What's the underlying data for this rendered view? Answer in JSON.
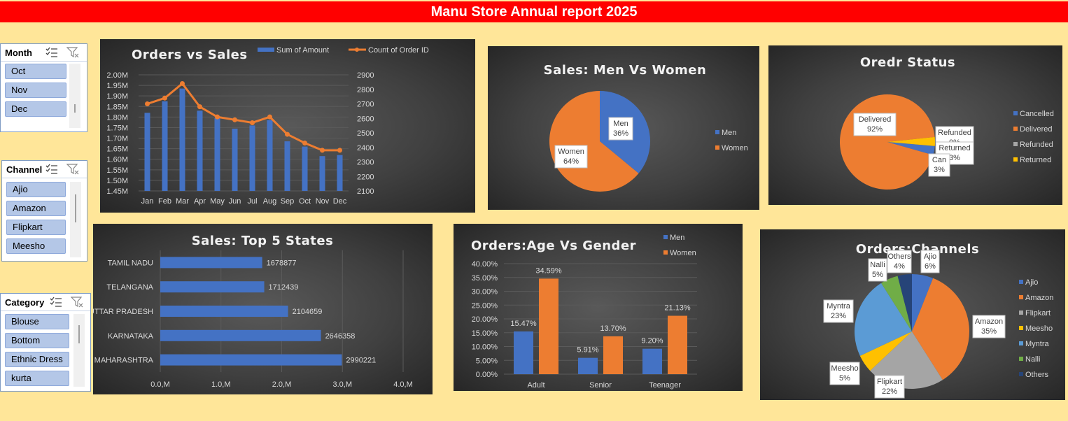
{
  "report_title": "Manu Store Annual report 2025",
  "colors": {
    "title_bar": "#ff0000",
    "background": "#ffe699",
    "blue": "#4472c4",
    "orange": "#ed7d31",
    "gray": "#a5a5a5",
    "yellow": "#ffc000",
    "lightblue": "#5b9bd5",
    "green": "#70ad47",
    "navy": "#264478"
  },
  "slicers": {
    "month": {
      "title": "Month",
      "items": [
        "Oct",
        "Nov",
        "Dec"
      ]
    },
    "channel": {
      "title": "Channel",
      "items": [
        "Ajio",
        "Amazon",
        "Flipkart",
        "Meesho"
      ]
    },
    "category": {
      "title": "Category",
      "items": [
        "Blouse",
        "Bottom",
        "Ethnic Dress",
        "kurta"
      ]
    },
    "icons": [
      "multi-select-icon",
      "clear-filter-icon"
    ]
  },
  "chart_data": [
    {
      "id": "orders_vs_sales",
      "type": "bar",
      "title": "Orders vs Sales",
      "categories": [
        "Jan",
        "Feb",
        "Mar",
        "Apr",
        "May",
        "Jun",
        "Jul",
        "Aug",
        "Sep",
        "Oct",
        "Nov",
        "Dec"
      ],
      "series": [
        {
          "name": "Sum of Amount",
          "type": "bar",
          "axis": "left",
          "values": [
            1820000,
            1875000,
            1935000,
            1830000,
            1795000,
            1745000,
            1760000,
            1785000,
            1685000,
            1660000,
            1615000,
            1620000
          ]
        },
        {
          "name": "Count of Order ID",
          "type": "line",
          "axis": "right",
          "values": [
            2700,
            2740,
            2840,
            2680,
            2610,
            2590,
            2570,
            2610,
            2490,
            2430,
            2380,
            2380
          ]
        }
      ],
      "y_left": {
        "min": 1450000,
        "max": 2000000,
        "ticks": [
          "1.45M",
          "1.50M",
          "1.55M",
          "1.60M",
          "1.65M",
          "1.70M",
          "1.75M",
          "1.80M",
          "1.85M",
          "1.90M",
          "1.95M",
          "2.00M"
        ]
      },
      "y_right": {
        "min": 2100,
        "max": 2900,
        "ticks": [
          "2100",
          "2200",
          "2300",
          "2400",
          "2500",
          "2600",
          "2700",
          "2800",
          "2900"
        ]
      },
      "legend": "top"
    },
    {
      "id": "men_vs_women",
      "type": "pie",
      "title": "Sales: Men Vs Women",
      "labels": [
        "Men",
        "Women"
      ],
      "values": [
        36,
        64
      ],
      "data_labels": [
        "36%",
        "64%"
      ],
      "legend": "right"
    },
    {
      "id": "order_status",
      "type": "pie",
      "title": "Oredr Status",
      "labels": [
        "Cancelled",
        "Delivered",
        "Refunded",
        "Returned"
      ],
      "values": [
        3,
        92,
        0,
        3
      ],
      "data_labels": [
        {
          "name": "Can",
          "pct": "3%"
        },
        {
          "name": "Delivered",
          "pct": "92%"
        },
        {
          "name": "Refunded",
          "pct": "0%"
        },
        {
          "name": "Returned",
          "pct": "3%"
        }
      ],
      "legend": "right"
    },
    {
      "id": "top_states",
      "type": "bar",
      "orientation": "horizontal",
      "title": "Sales: Top 5 States",
      "categories": [
        "TAMIL NADU",
        "TELANGANA",
        "UTTAR PRADESH",
        "KARNATAKA",
        "MAHARASHTRA"
      ],
      "values": [
        1678877,
        1712439,
        2104659,
        2646358,
        2990221
      ],
      "data_labels": [
        "1678877",
        "1712439",
        "2104659",
        "2646358",
        "2990221"
      ],
      "x_ticks": [
        "0.0,M",
        "1.0,M",
        "2.0,M",
        "3.0,M",
        "4.0,M"
      ],
      "xlim": [
        0,
        4000000
      ]
    },
    {
      "id": "age_vs_gender",
      "type": "bar",
      "title": "Orders:Age Vs Gender",
      "categories": [
        "Adult",
        "Senior",
        "Teenager"
      ],
      "series": [
        {
          "name": "Men",
          "values": [
            15.47,
            5.91,
            9.2
          ],
          "labels": [
            "15.47%",
            "5.91%",
            "9.20%"
          ]
        },
        {
          "name": "Women",
          "values": [
            34.59,
            13.7,
            21.13
          ],
          "labels": [
            "34.59%",
            "13.70%",
            "21.13%"
          ]
        }
      ],
      "y_ticks": [
        "0.00%",
        "5.00%",
        "10.00%",
        "15.00%",
        "20.00%",
        "25.00%",
        "30.00%",
        "35.00%",
        "40.00%"
      ],
      "ylim": [
        0,
        40
      ],
      "legend": "top-right"
    },
    {
      "id": "channels",
      "type": "pie",
      "title": "Orders:Channels",
      "labels": [
        "Ajio",
        "Amazon",
        "Flipkart",
        "Meesho",
        "Myntra",
        "Nalli",
        "Others"
      ],
      "values": [
        6,
        35,
        22,
        5,
        23,
        5,
        4
      ],
      "data_labels": [
        {
          "name": "Ajio",
          "pct": "6%"
        },
        {
          "name": "Amazon",
          "pct": "35%"
        },
        {
          "name": "Flipkart",
          "pct": "22%"
        },
        {
          "name": "Meesho",
          "pct": "5%"
        },
        {
          "name": "Myntra",
          "pct": "23%"
        },
        {
          "name": "Nalli",
          "pct": "5%"
        },
        {
          "name": "Others",
          "pct": "4%"
        }
      ],
      "legend": "right"
    }
  ]
}
